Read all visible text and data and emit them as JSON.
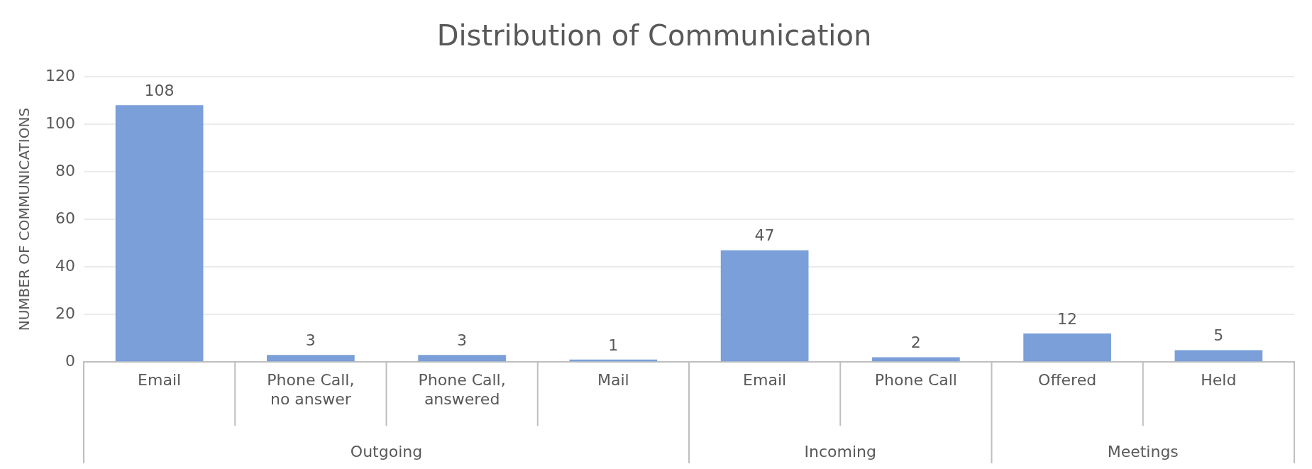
{
  "chart_data": {
    "type": "bar",
    "title": "Distribution of Communication",
    "ylabel": "NUMBER OF COMMUNICATIONS",
    "categories": [
      "Email",
      "Phone Call, no answer",
      "Phone Call, answered",
      "Mail",
      "Email",
      "Phone Call",
      "Offered",
      "Held"
    ],
    "values": [
      108,
      3,
      3,
      1,
      47,
      2,
      12,
      5
    ],
    "color": "#7a9fd9",
    "ylim": [
      0,
      120
    ],
    "yticks": [
      0,
      20,
      40,
      60,
      80,
      100,
      120
    ],
    "grid": "y",
    "legend": false,
    "data_labels": true,
    "annotations": [
      "Outgoing",
      "Incoming",
      "Meetings"
    ]
  }
}
